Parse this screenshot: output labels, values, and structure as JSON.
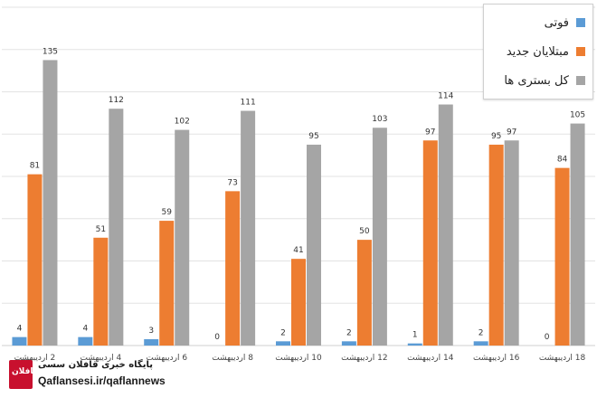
{
  "chart_data": {
    "type": "bar",
    "title": "",
    "xlabel": "",
    "ylabel": "",
    "ylim": [
      0,
      160
    ],
    "grid": true,
    "legend_position": "top-right",
    "categories": [
      "2 اردیبهشت",
      "4 اردیبهشت",
      "6 اردیبهشت",
      "8 اردیبهشت",
      "10 اردیبهشت",
      "12 اردیبهشت",
      "14 اردیبهشت",
      "16 اردیبهشت",
      "18 اردیبهشت"
    ],
    "series": [
      {
        "name": "فوتی",
        "color": "#5B9BD5",
        "values": [
          4,
          4,
          3,
          0,
          2,
          2,
          1,
          2,
          0
        ]
      },
      {
        "name": "مبتلایان جدید",
        "color": "#ED7D31",
        "values": [
          81,
          51,
          59,
          73,
          41,
          50,
          97,
          95,
          84
        ]
      },
      {
        "name": "کل بستری ها",
        "color": "#A5A5A5",
        "values": [
          135,
          112,
          102,
          111,
          95,
          103,
          114,
          97,
          105
        ]
      }
    ]
  },
  "watermark": {
    "logo_text": "قافلان",
    "line1": "پایگاه خبری قافلان سسی",
    "line2": "Qaflansesi.ir/qaflannews"
  }
}
